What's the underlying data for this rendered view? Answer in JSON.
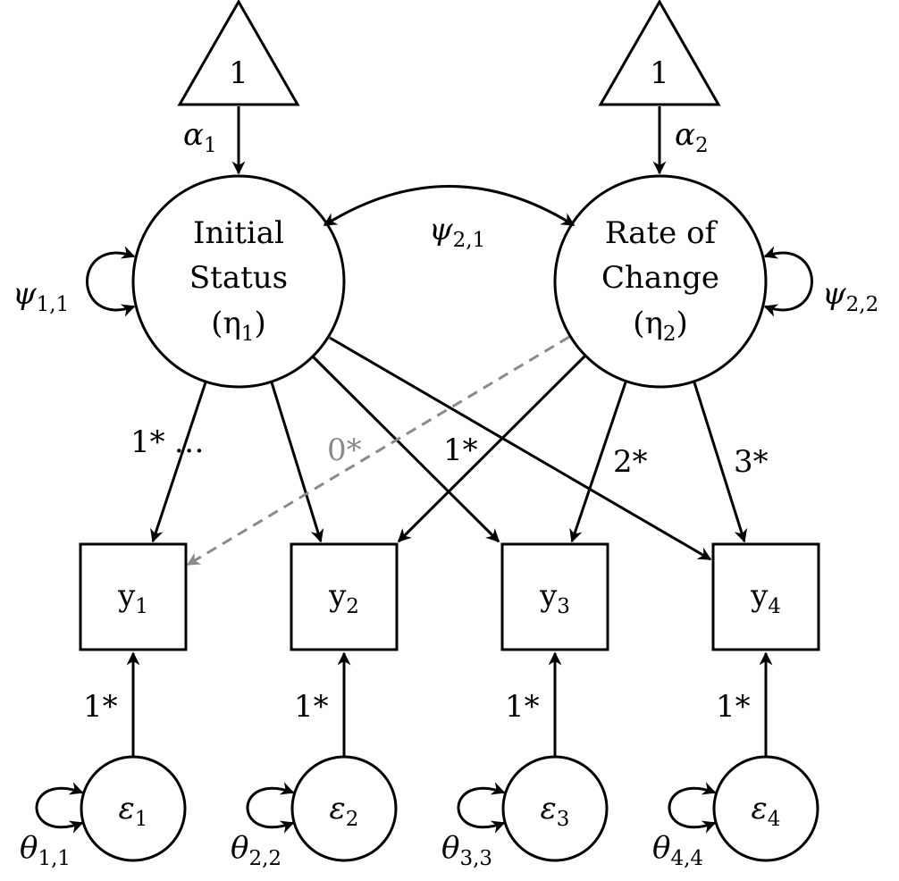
{
  "intercepts": [
    {
      "label": "1",
      "path_label": "α",
      "path_sub": "1"
    },
    {
      "label": "1",
      "path_label": "α",
      "path_sub": "2"
    }
  ],
  "latent": [
    {
      "line1": "Initial",
      "line2": "Status",
      "line3_pre": "(η",
      "line3_sub": "1",
      "line3_post": ")",
      "variance": "ψ",
      "variance_sub": "1,1"
    },
    {
      "line1": "Rate of",
      "line2": "Change",
      "line3_pre": "(η",
      "line3_sub": "2",
      "line3_post": ")",
      "variance": "ψ",
      "variance_sub": "2,2"
    }
  ],
  "covariance": {
    "label": "ψ",
    "sub": "2,1"
  },
  "observed": [
    {
      "name": "y",
      "sub": "1"
    },
    {
      "name": "y",
      "sub": "2"
    },
    {
      "name": "y",
      "sub": "3"
    },
    {
      "name": "y",
      "sub": "4"
    }
  ],
  "loadings": {
    "intercept_label": "1*",
    "intercept_ellipsis": "…",
    "slope": [
      "0*",
      "1*",
      "2*",
      "3*"
    ]
  },
  "errors": [
    {
      "symbol": "ε",
      "sub": "1",
      "loading": "1*",
      "variance": "θ",
      "variance_sub": "1,1"
    },
    {
      "symbol": "ε",
      "sub": "2",
      "loading": "1*",
      "variance": "θ",
      "variance_sub": "2,2"
    },
    {
      "symbol": "ε",
      "sub": "3",
      "loading": "1*",
      "variance": "θ",
      "variance_sub": "3,3"
    },
    {
      "symbol": "ε",
      "sub": "4",
      "loading": "1*",
      "variance": "θ",
      "variance_sub": "4,4"
    }
  ]
}
